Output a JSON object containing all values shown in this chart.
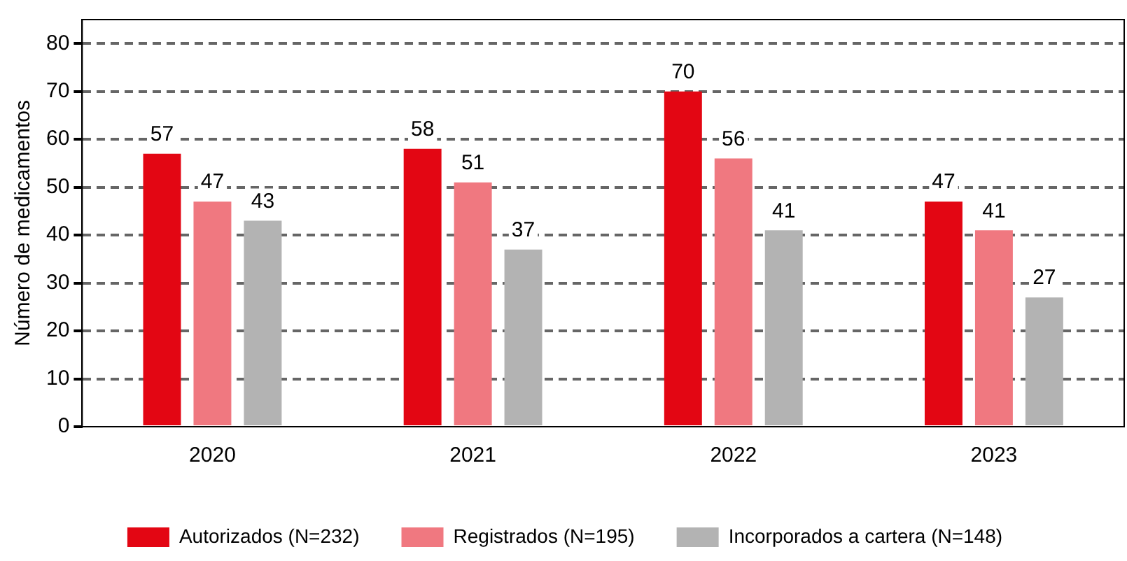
{
  "chart_data": {
    "type": "bar",
    "ylabel": "Número de medicamentos",
    "categories": [
      "2020",
      "2021",
      "2022",
      "2023"
    ],
    "series": [
      {
        "name": "Autorizados (N=232)",
        "color": "#e30613",
        "values": [
          57,
          58,
          70,
          47
        ]
      },
      {
        "name": "Registrados (N=195)",
        "color": "#f07880",
        "values": [
          47,
          51,
          56,
          41
        ]
      },
      {
        "name": "Incorporados a cartera (N=148)",
        "color": "#b3b3b3",
        "values": [
          43,
          37,
          41,
          27
        ]
      }
    ],
    "ylim": [
      0,
      85
    ],
    "yticks": [
      0,
      10,
      20,
      30,
      40,
      50,
      60,
      70,
      80
    ],
    "grid": "y",
    "legend": "bottom",
    "data_labels": true
  }
}
